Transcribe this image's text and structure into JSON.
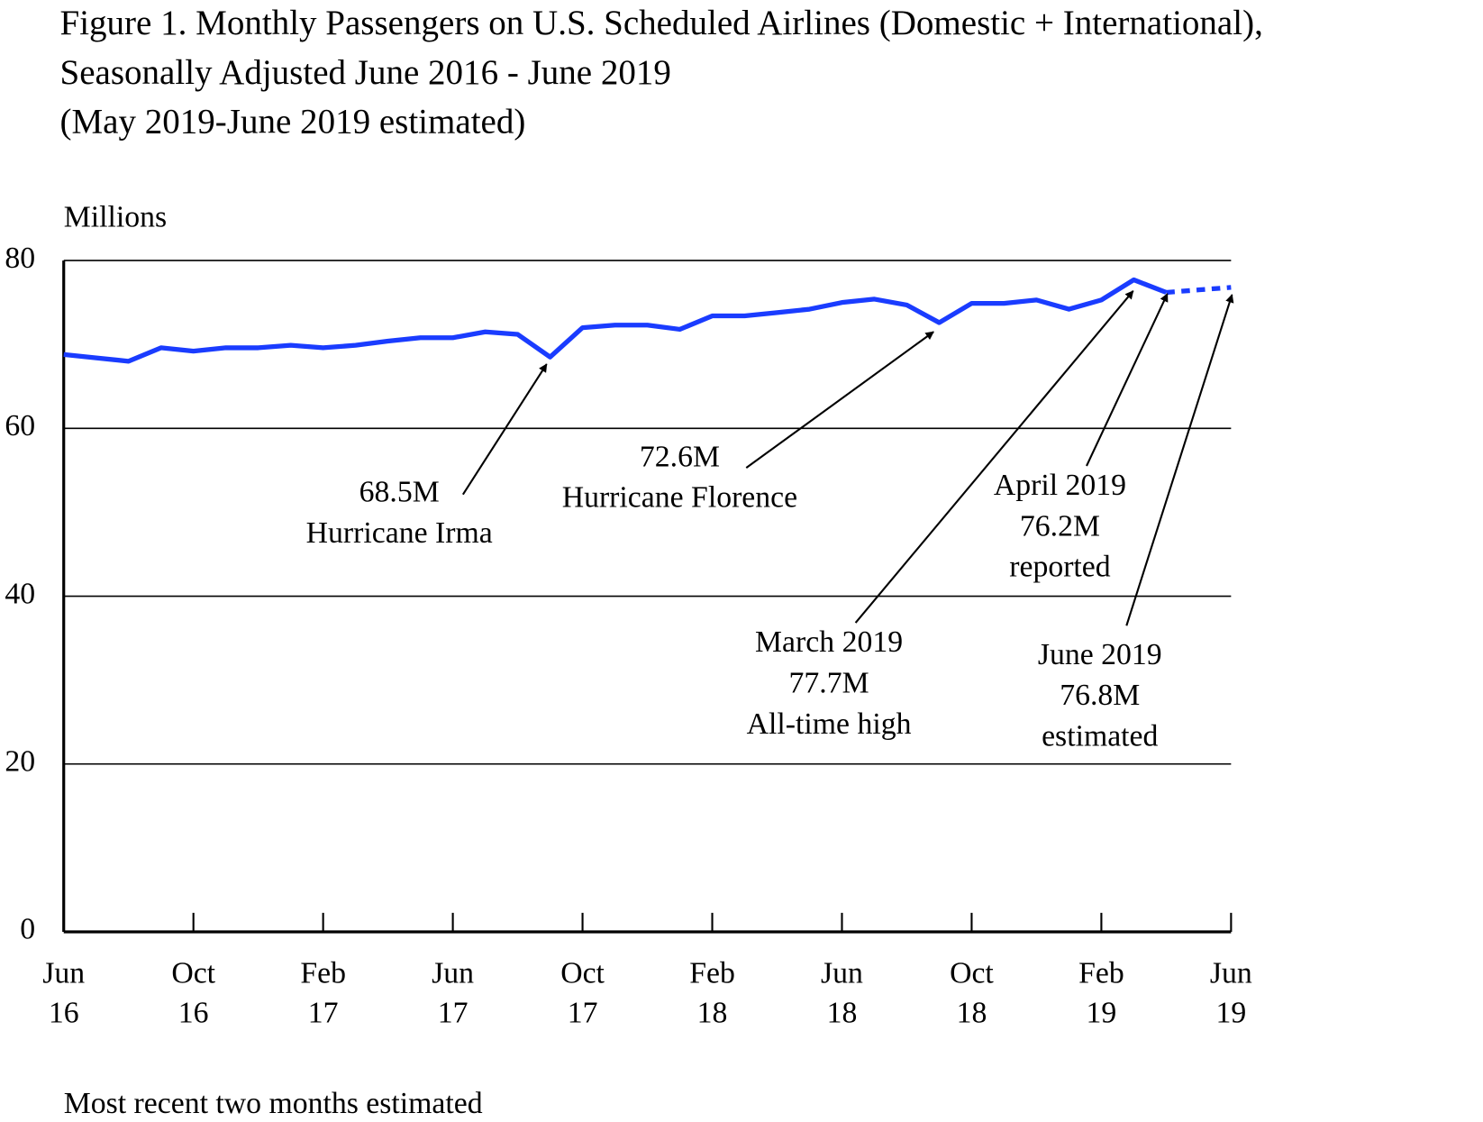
{
  "chart_data": {
    "type": "line",
    "title": [
      "Figure 1. Monthly Passengers on U.S. Scheduled Airlines (Domestic + International),",
      "Seasonally Adjusted June 2016 - June 2019",
      "(May 2019-June 2019 estimated)"
    ],
    "y_label": "Millions",
    "categories": [
      [
        "Jun",
        "16"
      ],
      null,
      null,
      null,
      [
        "Oct",
        "16"
      ],
      null,
      null,
      null,
      [
        "Feb",
        "17"
      ],
      null,
      null,
      null,
      [
        "Jun",
        "17"
      ],
      null,
      null,
      null,
      [
        "Oct",
        "17"
      ],
      null,
      null,
      null,
      [
        "Feb",
        "18"
      ],
      null,
      null,
      null,
      [
        "Jun",
        "18"
      ],
      null,
      null,
      null,
      [
        "Oct",
        "18"
      ],
      null,
      null,
      null,
      [
        "Feb",
        "19"
      ],
      null,
      null,
      null,
      [
        "Jun",
        "19"
      ]
    ],
    "series": [
      {
        "color": "#1a3cff",
        "style": "solid",
        "values": [
          68.8,
          68.4,
          68.0,
          69.6,
          69.2,
          69.6,
          69.6,
          69.9,
          69.6,
          69.9,
          70.4,
          70.8,
          70.8,
          71.5,
          71.2,
          68.5,
          72.0,
          72.3,
          72.3,
          71.8,
          73.4,
          73.4,
          73.8,
          74.2,
          75.0,
          75.4,
          74.7,
          72.6,
          74.9,
          74.9,
          75.3,
          74.2,
          75.3,
          77.7,
          76.2,
          null,
          null
        ]
      },
      {
        "color": "#1a3cff",
        "style": "dashed",
        "values": [
          null,
          null,
          null,
          null,
          null,
          null,
          null,
          null,
          null,
          null,
          null,
          null,
          null,
          null,
          null,
          null,
          null,
          null,
          null,
          null,
          null,
          null,
          null,
          null,
          null,
          null,
          null,
          null,
          null,
          null,
          null,
          null,
          null,
          null,
          76.2,
          76.5,
          76.8
        ]
      }
    ],
    "ylim": [
      0,
      80
    ],
    "yticks": [
      0,
      20,
      40,
      60,
      80
    ],
    "grid": true,
    "annotations": [
      {
        "lines": [
          "68.5M",
          "Hurricane Irma"
        ]
      },
      {
        "lines": [
          "72.6M",
          "Hurricane Florence"
        ]
      },
      {
        "lines": [
          "March 2019",
          "77.7M",
          "All-time high"
        ]
      },
      {
        "lines": [
          "April 2019",
          "76.2M",
          "reported"
        ]
      },
      {
        "lines": [
          "June 2019",
          "76.8M",
          "estimated"
        ]
      }
    ],
    "footnote": "Most recent two months estimated"
  }
}
